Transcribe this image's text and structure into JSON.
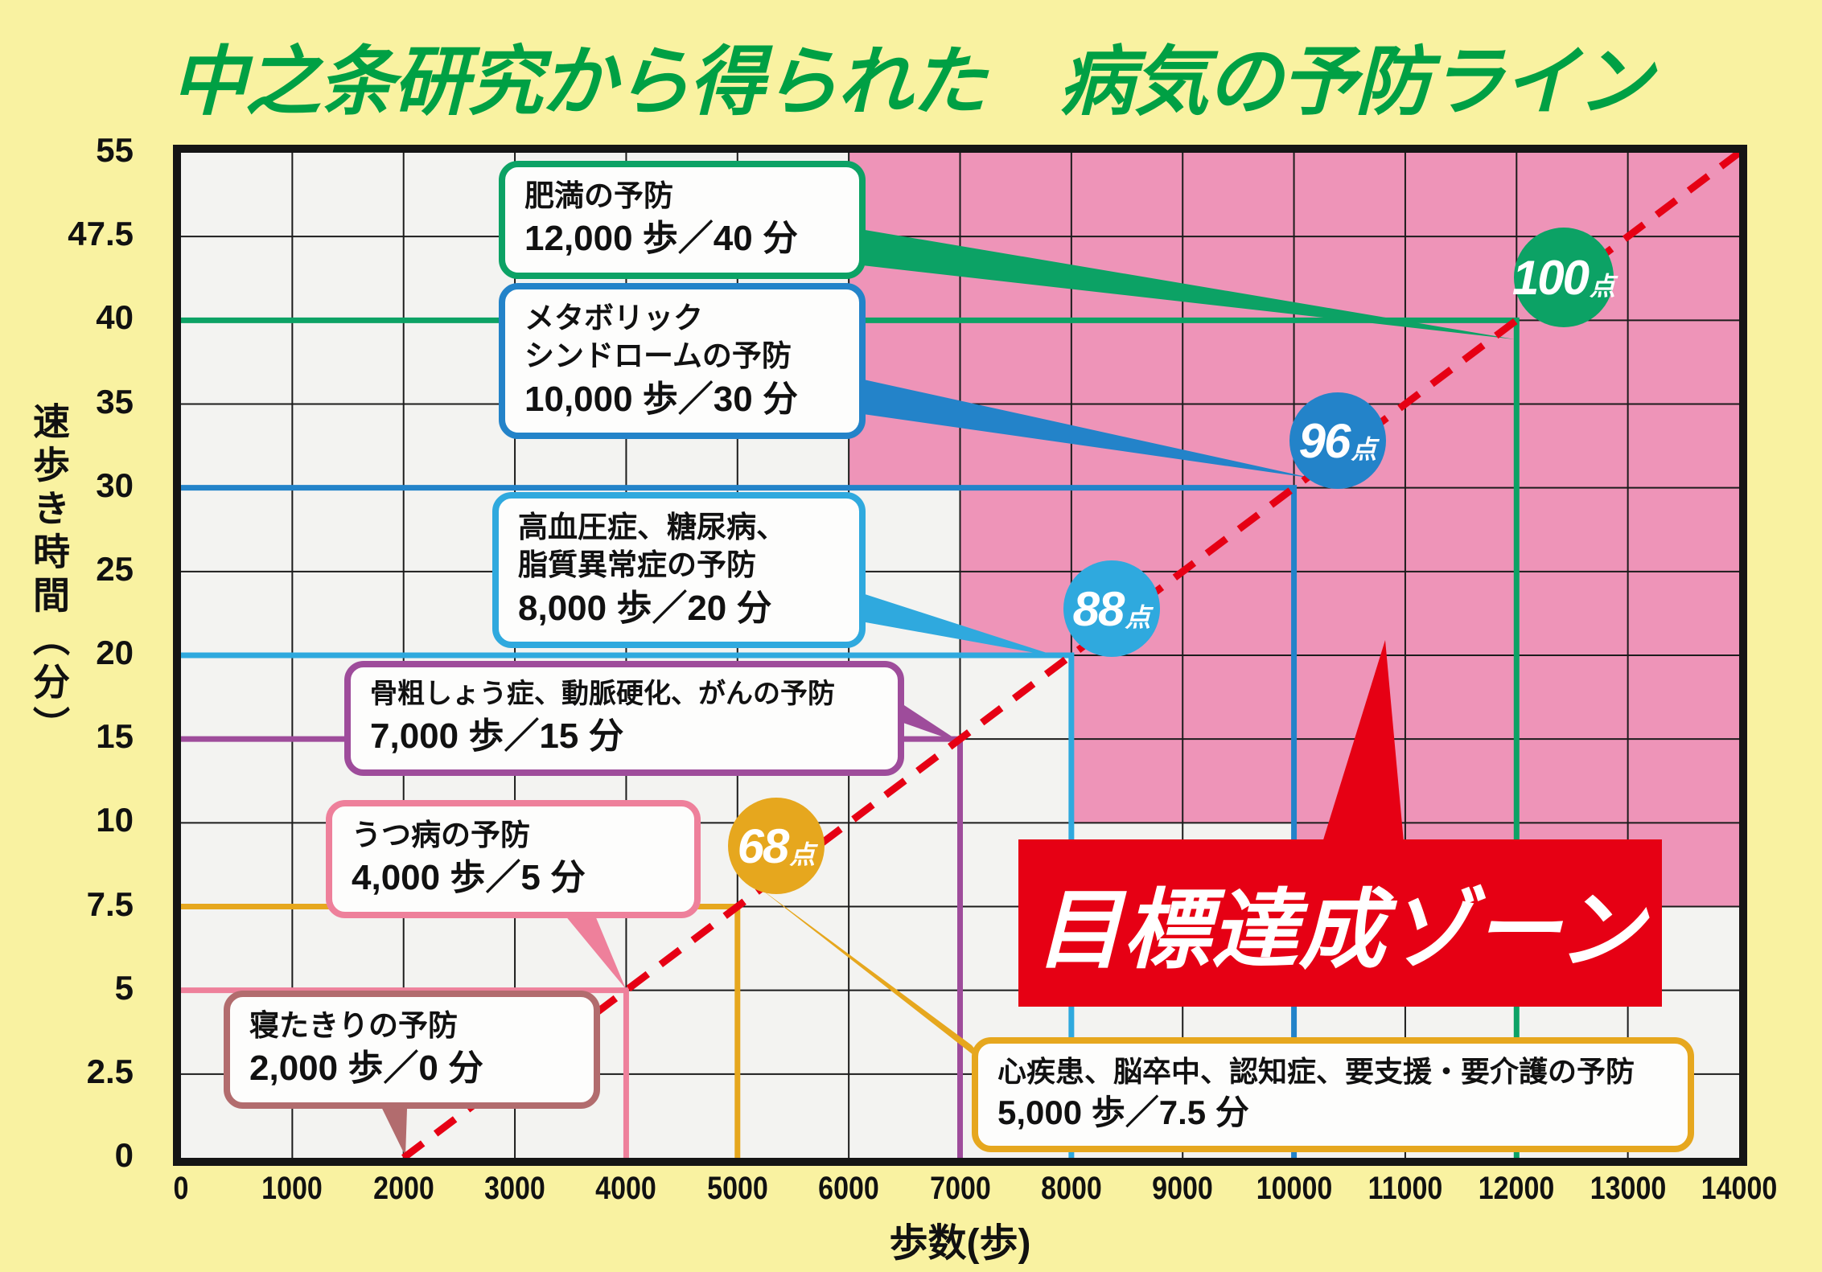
{
  "title": "中之条研究から得られた　病気の予防ライン",
  "zone_banner": "目標達成ゾーン",
  "axes": {
    "y_label": "速歩き時間（分）",
    "x_label": "歩数(歩)",
    "y_ticks": [
      "55",
      "47.5",
      "40",
      "35",
      "30",
      "25",
      "20",
      "15",
      "10",
      "7.5",
      "5",
      "2.5",
      "0"
    ],
    "x_ticks": [
      "0",
      "1000",
      "2000",
      "3000",
      "4000",
      "5000",
      "6000",
      "7000",
      "8000",
      "9000",
      "10000",
      "11000",
      "12000",
      "13000",
      "14000"
    ]
  },
  "callouts": {
    "obesity": {
      "line1": "肥満の予防",
      "value": "12,000 歩／40 分"
    },
    "metabolic": {
      "line1": "メタボリック",
      "line2": "シンドロームの予防",
      "value": "10,000 歩／30 分"
    },
    "hypertension": {
      "line1": "高血圧症、糖尿病、",
      "line2": "脂質異常症の予防",
      "value": "8,000 歩／20 分"
    },
    "osteoporosis": {
      "line1": "骨粗しょう症、動脈硬化、がんの予防",
      "value": "7,000 歩／15 分"
    },
    "depression": {
      "line1": "うつ病の予防",
      "value": "4,000 歩／5 分"
    },
    "bedridden": {
      "line1": "寝たきりの予防",
      "value": "2,000 歩／0 分"
    },
    "heart": {
      "line1": "心疾患、脳卒中、認知症、要支援・要介護の予防",
      "value": "5,000 歩／7.5 分"
    }
  },
  "badges": {
    "b100": {
      "score": "100",
      "unit": "点"
    },
    "b96": {
      "score": "96",
      "unit": "点"
    },
    "b88": {
      "score": "88",
      "unit": "点"
    },
    "b68": {
      "score": "68",
      "unit": "点"
    }
  },
  "colors": {
    "green": "#0ca265",
    "blue": "#2383c9",
    "teal": "#2fa9de",
    "purple": "#9e4c9b",
    "pink": "#ee809b",
    "rose": "#b26c6e",
    "orange": "#e6a71e",
    "red": "#e60014",
    "zone_pink": "#ee94b8",
    "title_green": "#00a044",
    "bg_yellow": "#f9f2a1",
    "plot_bg": "#f3f3f1",
    "grid": "#1c1c1c",
    "text": "#111111",
    "badge_text": "#ffffff"
  },
  "chart_data": {
    "type": "area",
    "title": "中之条研究から得られた　病気の予防ライン",
    "xlabel": "歩数(歩)",
    "ylabel": "速歩き時間（分）",
    "x_range": [
      0,
      14000
    ],
    "x_tick_step": 1000,
    "y_ticks": [
      0,
      2.5,
      5,
      7.5,
      10,
      15,
      20,
      25,
      30,
      35,
      40,
      47.5,
      55
    ],
    "y_axis_note": "y tick marks are evenly spaced (non-linear minute scale)",
    "grid": true,
    "prevention_thresholds": [
      {
        "key": "obesity",
        "label": "肥満の予防",
        "steps": 12000,
        "minutes": 40,
        "color_key": "green"
      },
      {
        "key": "metabolic",
        "label": "メタボリックシンドロームの予防",
        "steps": 10000,
        "minutes": 30,
        "color_key": "blue"
      },
      {
        "key": "hypertension",
        "label": "高血圧症、糖尿病、脂質異常症の予防",
        "steps": 8000,
        "minutes": 20,
        "color_key": "teal"
      },
      {
        "key": "osteoporosis",
        "label": "骨粗しょう症、動脈硬化、がんの予防",
        "steps": 7000,
        "minutes": 15,
        "color_key": "purple"
      },
      {
        "key": "heart",
        "label": "心疾患、脳卒中、認知症、要支援・要介護の予防",
        "steps": 5000,
        "minutes": 7.5,
        "color_key": "orange"
      },
      {
        "key": "depression",
        "label": "うつ病の予防",
        "steps": 4000,
        "minutes": 5,
        "color_key": "pink"
      },
      {
        "key": "bedridden",
        "label": "寝たきりの予防",
        "steps": 2000,
        "minutes": 0,
        "color_key": "rose"
      }
    ],
    "score_badges": [
      {
        "score": 100,
        "steps": 12000,
        "minutes": 40,
        "color_key": "green"
      },
      {
        "score": 96,
        "steps": 10000,
        "minutes": 30,
        "color_key": "blue"
      },
      {
        "score": 88,
        "steps": 8000,
        "minutes": 20,
        "color_key": "teal"
      },
      {
        "score": 68,
        "steps": 5000,
        "minutes": 7.5,
        "color_key": "orange"
      }
    ],
    "diagonal_line": {
      "from": [
        2000,
        0
      ],
      "to": [
        14000,
        55
      ],
      "style": "dashed",
      "color_key": "red"
    },
    "goal_zone": {
      "label": "目標達成ゾーン",
      "color_key": "zone_pink",
      "boundary": [
        [
          6000,
          55
        ],
        [
          6000,
          30
        ],
        [
          7000,
          30
        ],
        [
          7000,
          20
        ],
        [
          8000,
          20
        ],
        [
          8000,
          10
        ],
        [
          10000,
          10
        ],
        [
          10000,
          7.5
        ],
        [
          14000,
          7.5
        ],
        [
          14000,
          55
        ]
      ]
    }
  }
}
